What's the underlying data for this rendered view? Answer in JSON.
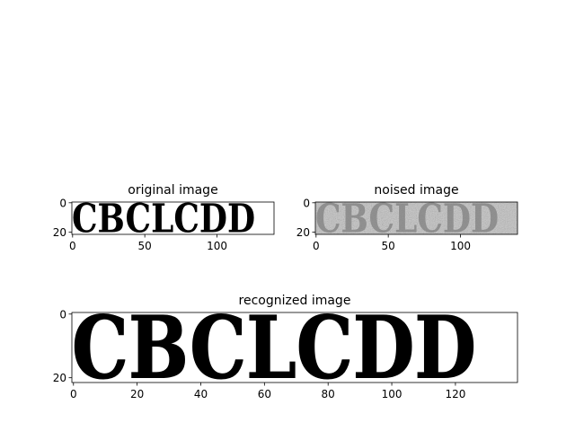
{
  "figure": {
    "background": "#ffffff"
  },
  "chart_data": [
    {
      "type": "image",
      "title": "original image",
      "image_shape": [
        22,
        140
      ],
      "text_content": "CBCLCDD",
      "colormap": "gray",
      "xticks": [
        0,
        50,
        100
      ],
      "yticks": [
        0,
        20
      ],
      "xlim": [
        -0.5,
        139.5
      ],
      "ylim": [
        21.5,
        -0.5
      ]
    },
    {
      "type": "image",
      "title": "noised image",
      "image_shape": [
        22,
        140
      ],
      "text_content": "CBCLCDD",
      "colormap": "gray",
      "noise": "additive gaussian",
      "xticks": [
        0,
        50,
        100
      ],
      "yticks": [
        0,
        20
      ],
      "xlim": [
        -0.5,
        139.5
      ],
      "ylim": [
        21.5,
        -0.5
      ]
    },
    {
      "type": "image",
      "title": "recognized image",
      "image_shape": [
        22,
        140
      ],
      "text_content": "CBCLCDD",
      "colormap": "gray",
      "xticks": [
        0,
        20,
        40,
        60,
        80,
        100,
        120
      ],
      "yticks": [
        0,
        20
      ],
      "xlim": [
        -0.5,
        139.5
      ],
      "ylim": [
        21.5,
        -0.5
      ]
    }
  ]
}
